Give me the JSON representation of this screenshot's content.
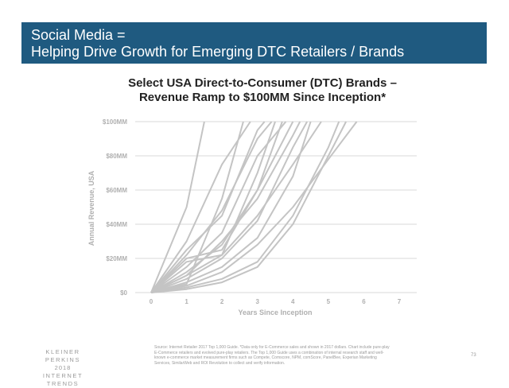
{
  "banner": {
    "line1": "Social Media =",
    "line2": "Helping Drive Growth for Emerging DTC Retailers / Brands",
    "color": "#1f5a80"
  },
  "footer": {
    "logo_line1": "KLEINER PERKINS",
    "logo_line2": "2018",
    "logo_line3": "INTERNET TRENDS",
    "source": "Source: Internet Retailer 2017 Top 1,000 Guide. *Data only for E-Commerce sales and shown in 2017 dollars. Chart include pure-play E-Commerce retailers and evolved pure-play retailers. The Top 1,000 Guide uses a combination of internal research staff and well-known e-commerce market measurement firms such as Compete, Comscore, NPM, comScore, PanelBee, Experian Marketing Services, SimilarWeb and ROI Revolution to collect and verify information.",
    "page_number": "73"
  },
  "chart_data": {
    "type": "line",
    "title_line1": "Select USA Direct-to-Consumer (DTC) Brands –",
    "title_line2": "Revenue Ramp to $100MM Since Inception*",
    "xlabel": "Years Since Inception",
    "ylabel": "Annual Revenue, USA",
    "xlim": [
      0,
      7
    ],
    "ylim": [
      0,
      100
    ],
    "x_ticks": [
      "0",
      "1",
      "2",
      "3",
      "4",
      "5",
      "6",
      "7"
    ],
    "y_ticks": [
      "$0",
      "$20MM",
      "$40MM",
      "$60MM",
      "$80MM",
      "$100MM"
    ],
    "grid": true,
    "line_color": "#c4c4c4",
    "series": [
      {
        "x": [
          0,
          1,
          1.5
        ],
        "values": [
          0,
          50,
          100
        ]
      },
      {
        "x": [
          0,
          1,
          2,
          2.8
        ],
        "values": [
          0,
          30,
          75,
          100
        ]
      },
      {
        "x": [
          0,
          1,
          2,
          3,
          3.8
        ],
        "values": [
          0,
          15,
          35,
          80,
          100
        ]
      },
      {
        "x": [
          0,
          1,
          2,
          2.6
        ],
        "values": [
          0,
          5,
          55,
          100
        ]
      },
      {
        "x": [
          0,
          1,
          2,
          3,
          4
        ],
        "values": [
          0,
          12,
          28,
          60,
          100
        ]
      },
      {
        "x": [
          0,
          1,
          2,
          3,
          4,
          4.4
        ],
        "values": [
          0,
          8,
          20,
          42,
          85,
          100
        ]
      },
      {
        "x": [
          0,
          1,
          2,
          3,
          4,
          4.8
        ],
        "values": [
          0,
          10,
          22,
          45,
          75,
          100
        ]
      },
      {
        "x": [
          0,
          1,
          2,
          3,
          4,
          5,
          5.3
        ],
        "values": [
          0,
          3,
          8,
          18,
          45,
          85,
          100
        ]
      },
      {
        "x": [
          0,
          1,
          2,
          3,
          4,
          5,
          5.5
        ],
        "values": [
          0,
          2,
          6,
          15,
          40,
          80,
          100
        ]
      },
      {
        "x": [
          0,
          1,
          2,
          3,
          3.5
        ],
        "values": [
          0,
          18,
          22,
          70,
          100
        ]
      },
      {
        "x": [
          0,
          1,
          2,
          3,
          4,
          4.5
        ],
        "values": [
          0,
          6,
          15,
          32,
          68,
          100
        ]
      },
      {
        "x": [
          0,
          1,
          2,
          3,
          3.4
        ],
        "values": [
          0,
          22,
          48,
          90,
          100
        ]
      },
      {
        "x": [
          0,
          1,
          2,
          3,
          4,
          5,
          5.8
        ],
        "values": [
          0,
          4,
          12,
          28,
          50,
          78,
          100
        ]
      },
      {
        "x": [
          0,
          1,
          2,
          3,
          3.7
        ],
        "values": [
          0,
          20,
          25,
          60,
          100
        ]
      },
      {
        "x": [
          0,
          1,
          2,
          3,
          4,
          4.2
        ],
        "values": [
          0,
          10,
          30,
          55,
          92,
          100
        ]
      },
      {
        "x": [
          0,
          1,
          2,
          3,
          3.2
        ],
        "values": [
          0,
          25,
          45,
          95,
          100
        ]
      }
    ]
  }
}
